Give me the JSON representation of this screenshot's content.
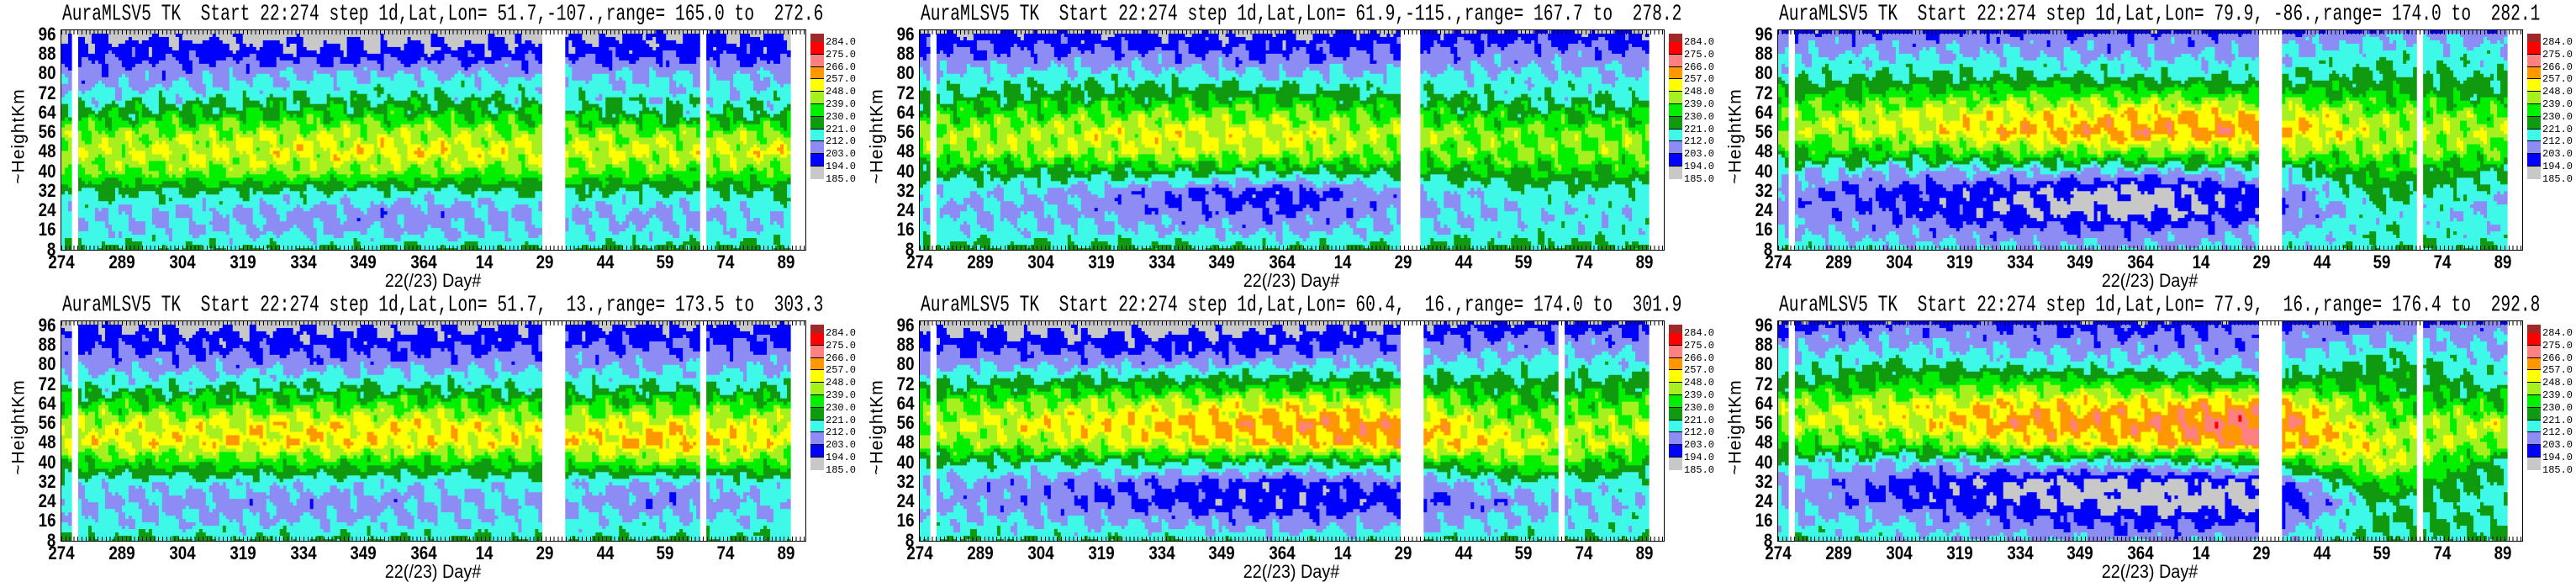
{
  "colorbar": {
    "levels": [
      "284.0",
      "275.0",
      "266.0",
      "257.0",
      "248.0",
      "239.0",
      "230.0",
      "221.0",
      "212.0",
      "203.0",
      "194.0",
      "185.0"
    ],
    "bounds": [
      185,
      194,
      203,
      212,
      221,
      230,
      239,
      248,
      257,
      266,
      275,
      284
    ],
    "colors": [
      "#c8c8c8",
      "#0000ff",
      "#8c8cf4",
      "#3ef8e8",
      "#109a10",
      "#00f000",
      "#a6f020",
      "#ffff00",
      "#ff9800",
      "#ff8080",
      "#ff0000",
      "#a02828"
    ]
  },
  "chart_data": [
    {
      "type": "heatmap",
      "title": "AuraMLSV5 TK  Start 22:274 step 1d,Lat,Lon= 51.7,-107.,range= 165.0 to  272.6",
      "xlabel": "22(/23) Day#",
      "ylabel": "~HeightKm",
      "xticks": [
        "274",
        "289",
        "304",
        "319",
        "334",
        "349",
        "364",
        "14",
        "29",
        "44",
        "59",
        "74",
        "89"
      ],
      "yticks": [
        "8",
        "16",
        "24",
        "32",
        "40",
        "48",
        "56",
        "64",
        "72",
        "80",
        "88",
        "96"
      ],
      "xlim": [
        273.7,
        459
      ],
      "ylim": [
        7.5,
        98
      ],
      "x_days": [
        274,
        304,
        334,
        364,
        394,
        424,
        454
      ],
      "y_heights": [
        96,
        88,
        80,
        72,
        64,
        56,
        48,
        40,
        32,
        24,
        16,
        8
      ],
      "gaps": [
        [
          276,
          277.5
        ],
        [
          393,
          398.5
        ],
        [
          432,
          434
        ],
        [
          455,
          459
        ]
      ],
      "values": [
        [
          192,
          192,
          190,
          190,
          192,
          195,
          195
        ],
        [
          200,
          200,
          198,
          198,
          200,
          200,
          200
        ],
        [
          206,
          208,
          212,
          212,
          210,
          212,
          210
        ],
        [
          214,
          215,
          218,
          220,
          218,
          215,
          215
        ],
        [
          225,
          228,
          230,
          230,
          228,
          222,
          222
        ],
        [
          240,
          242,
          245,
          245,
          242,
          240,
          242
        ],
        [
          246,
          248,
          250,
          252,
          248,
          248,
          250
        ],
        [
          238,
          240,
          242,
          240,
          238,
          238,
          238
        ],
        [
          222,
          222,
          220,
          218,
          222,
          220,
          222
        ],
        [
          214,
          212,
          210,
          206,
          212,
          210,
          214
        ],
        [
          214,
          212,
          210,
          210,
          212,
          212,
          214
        ],
        [
          224,
          222,
          222,
          222,
          222,
          224,
          224
        ]
      ]
    },
    {
      "type": "heatmap",
      "title": "AuraMLSV5 TK  Start 22:274 step 1d,Lat,Lon= 61.9,-115.,range= 167.7 to  278.2",
      "xlabel": "22(/23) Day#",
      "ylabel": "~HeightKm",
      "xticks": [
        "274",
        "289",
        "304",
        "319",
        "334",
        "349",
        "364",
        "14",
        "29",
        "44",
        "59",
        "74",
        "89"
      ],
      "yticks": [
        "8",
        "16",
        "24",
        "32",
        "40",
        "48",
        "56",
        "64",
        "72",
        "80",
        "88",
        "96"
      ],
      "xlim": [
        273.7,
        459
      ],
      "ylim": [
        7.5,
        98
      ],
      "x_days": [
        274,
        304,
        334,
        364,
        394,
        424,
        454
      ],
      "y_heights": [
        96,
        88,
        80,
        72,
        64,
        56,
        48,
        40,
        32,
        24,
        16,
        8
      ],
      "gaps": [
        [
          276,
          277.5
        ],
        [
          393,
          398
        ],
        [
          455,
          459
        ]
      ],
      "values": [
        [
          195,
          198,
          195,
          195,
          198,
          200,
          198
        ],
        [
          205,
          205,
          205,
          202,
          205,
          208,
          205
        ],
        [
          212,
          215,
          215,
          212,
          212,
          214,
          212
        ],
        [
          220,
          224,
          226,
          226,
          222,
          218,
          218
        ],
        [
          232,
          236,
          240,
          240,
          234,
          228,
          228
        ],
        [
          242,
          246,
          250,
          250,
          244,
          240,
          242
        ],
        [
          240,
          244,
          246,
          246,
          240,
          240,
          242
        ],
        [
          225,
          225,
          225,
          222,
          225,
          230,
          230
        ],
        [
          214,
          212,
          204,
          198,
          210,
          218,
          218
        ],
        [
          212,
          210,
          206,
          202,
          210,
          214,
          214
        ],
        [
          214,
          214,
          212,
          210,
          214,
          216,
          216
        ],
        [
          224,
          224,
          224,
          222,
          224,
          224,
          224
        ]
      ]
    },
    {
      "type": "heatmap",
      "title": "AuraMLSV5 TK  Start 22:274 step 1d,Lat,Lon= 79.9, -86.,range= 174.0 to  282.1",
      "xlabel": "22(/23) Day#",
      "ylabel": "~HeightKm",
      "xticks": [
        "274",
        "289",
        "304",
        "319",
        "334",
        "349",
        "364",
        "14",
        "29",
        "44",
        "59",
        "74",
        "89"
      ],
      "yticks": [
        "8",
        "16",
        "24",
        "32",
        "40",
        "48",
        "56",
        "64",
        "72",
        "80",
        "88",
        "96"
      ],
      "xlim": [
        273.7,
        459
      ],
      "ylim": [
        7.5,
        98
      ],
      "x_days": [
        274,
        304,
        334,
        364,
        394,
        424,
        454
      ],
      "y_heights": [
        96,
        88,
        80,
        72,
        64,
        56,
        48,
        40,
        32,
        24,
        16,
        8
      ],
      "gaps": [
        [
          276,
          277.5
        ],
        [
          393,
          398.5
        ],
        [
          432,
          434
        ],
        [
          455,
          459
        ]
      ],
      "values": [
        [
          205,
          205,
          205,
          205,
          205,
          210,
          210
        ],
        [
          212,
          212,
          212,
          210,
          212,
          218,
          215
        ],
        [
          218,
          220,
          220,
          218,
          218,
          222,
          220
        ],
        [
          228,
          232,
          236,
          236,
          232,
          230,
          225
        ],
        [
          240,
          248,
          252,
          255,
          255,
          240,
          238
        ],
        [
          242,
          248,
          258,
          262,
          262,
          245,
          245
        ],
        [
          232,
          232,
          238,
          240,
          240,
          240,
          238
        ],
        [
          215,
          210,
          212,
          210,
          215,
          232,
          222
        ],
        [
          208,
          200,
          195,
          190,
          200,
          225,
          215
        ],
        [
          208,
          202,
          193,
          189,
          200,
          218,
          212
        ],
        [
          212,
          208,
          205,
          205,
          210,
          218,
          215
        ],
        [
          218,
          215,
          212,
          212,
          215,
          220,
          220
        ]
      ]
    },
    {
      "type": "heatmap",
      "title": "AuraMLSV5 TK  Start 22:274 step 1d,Lat,Lon= 51.7,  13.,range= 173.5 to  303.3",
      "xlabel": "22(/23) Day#",
      "ylabel": "~HeightKm",
      "xticks": [
        "274",
        "289",
        "304",
        "319",
        "334",
        "349",
        "364",
        "14",
        "29",
        "44",
        "59",
        "74",
        "89"
      ],
      "yticks": [
        "8",
        "16",
        "24",
        "32",
        "40",
        "48",
        "56",
        "64",
        "72",
        "80",
        "88",
        "96"
      ],
      "xlim": [
        273.7,
        459
      ],
      "ylim": [
        7.5,
        98
      ],
      "x_days": [
        274,
        304,
        334,
        364,
        394,
        424,
        454
      ],
      "y_heights": [
        96,
        88,
        80,
        72,
        64,
        56,
        48,
        40,
        32,
        24,
        16,
        8
      ],
      "gaps": [
        [
          276,
          277.5
        ],
        [
          393,
          398.5
        ],
        [
          432,
          434
        ],
        [
          455,
          459
        ]
      ],
      "values": [
        [
          195,
          192,
          192,
          192,
          195,
          195,
          195
        ],
        [
          203,
          200,
          200,
          200,
          203,
          203,
          203
        ],
        [
          210,
          208,
          208,
          208,
          210,
          210,
          210
        ],
        [
          218,
          218,
          220,
          220,
          218,
          220,
          218
        ],
        [
          232,
          234,
          236,
          236,
          232,
          236,
          234
        ],
        [
          246,
          250,
          252,
          252,
          248,
          252,
          248
        ],
        [
          248,
          252,
          254,
          252,
          250,
          258,
          250
        ],
        [
          232,
          234,
          234,
          232,
          232,
          240,
          235
        ],
        [
          216,
          215,
          215,
          214,
          216,
          210,
          218
        ],
        [
          212,
          208,
          208,
          210,
          212,
          205,
          214
        ],
        [
          214,
          212,
          212,
          212,
          214,
          214,
          214
        ],
        [
          222,
          222,
          222,
          222,
          222,
          222,
          222
        ]
      ]
    },
    {
      "type": "heatmap",
      "title": "AuraMLSV5 TK  Start 22:274 step 1d,Lat,Lon= 60.4,  16.,range= 174.0 to  301.9",
      "xlabel": "22(/23) Day#",
      "ylabel": "~HeightKm",
      "xticks": [
        "274",
        "289",
        "304",
        "319",
        "334",
        "349",
        "364",
        "14",
        "29",
        "44",
        "59",
        "74",
        "89"
      ],
      "yticks": [
        "8",
        "16",
        "24",
        "32",
        "40",
        "48",
        "56",
        "64",
        "72",
        "80",
        "88",
        "96"
      ],
      "xlim": [
        273.7,
        459
      ],
      "ylim": [
        7.5,
        98
      ],
      "x_days": [
        274,
        304,
        334,
        364,
        394,
        424,
        454
      ],
      "y_heights": [
        96,
        88,
        80,
        72,
        64,
        56,
        48,
        40,
        32,
        24,
        16,
        8
      ],
      "gaps": [
        [
          276,
          277.5
        ],
        [
          393,
          398.5
        ],
        [
          432,
          434
        ],
        [
          455,
          459
        ]
      ],
      "values": [
        [
          192,
          190,
          190,
          192,
          195,
          200,
          200
        ],
        [
          200,
          200,
          198,
          200,
          205,
          208,
          208
        ],
        [
          210,
          210,
          210,
          212,
          214,
          216,
          215
        ],
        [
          222,
          226,
          228,
          230,
          228,
          225,
          225
        ],
        [
          236,
          242,
          248,
          250,
          248,
          232,
          238
        ],
        [
          244,
          252,
          256,
          262,
          262,
          240,
          246
        ],
        [
          238,
          245,
          250,
          255,
          260,
          250,
          242
        ],
        [
          222,
          220,
          222,
          222,
          225,
          240,
          228
        ],
        [
          212,
          206,
          203,
          198,
          205,
          218,
          216
        ],
        [
          212,
          206,
          200,
          195,
          200,
          208,
          214
        ],
        [
          214,
          212,
          210,
          206,
          210,
          214,
          216
        ],
        [
          222,
          220,
          220,
          218,
          218,
          220,
          222
        ]
      ]
    },
    {
      "type": "heatmap",
      "title": "AuraMLSV5 TK  Start 22:274 step 1d,Lat,Lon= 77.9,  16.,range= 176.4 to  292.8",
      "xlabel": "22(/23) Day#",
      "ylabel": "~HeightKm",
      "xticks": [
        "274",
        "289",
        "304",
        "319",
        "334",
        "349",
        "364",
        "14",
        "29",
        "44",
        "59",
        "74",
        "89"
      ],
      "yticks": [
        "8",
        "16",
        "24",
        "32",
        "40",
        "48",
        "56",
        "64",
        "72",
        "80",
        "88",
        "96"
      ],
      "xlim": [
        273.7,
        459
      ],
      "ylim": [
        7.5,
        98
      ],
      "x_days": [
        274,
        304,
        334,
        364,
        394,
        424,
        454
      ],
      "y_heights": [
        96,
        88,
        80,
        72,
        64,
        56,
        48,
        40,
        32,
        24,
        16,
        8
      ],
      "gaps": [
        [
          276,
          277.5
        ],
        [
          393,
          398.5
        ],
        [
          432,
          434
        ],
        [
          455,
          459
        ]
      ],
      "values": [
        [
          200,
          205,
          205,
          200,
          205,
          205,
          210
        ],
        [
          210,
          212,
          208,
          208,
          205,
          215,
          210
        ],
        [
          215,
          222,
          218,
          215,
          212,
          225,
          215
        ],
        [
          225,
          232,
          238,
          235,
          230,
          230,
          218
        ],
        [
          240,
          248,
          255,
          255,
          262,
          235,
          232
        ],
        [
          245,
          250,
          262,
          262,
          272,
          240,
          248
        ],
        [
          235,
          235,
          250,
          255,
          265,
          248,
          240
        ],
        [
          218,
          212,
          215,
          215,
          225,
          250,
          222
        ],
        [
          212,
          200,
          192,
          191,
          195,
          235,
          218
        ],
        [
          210,
          202,
          194,
          189,
          190,
          222,
          218
        ],
        [
          215,
          212,
          205,
          200,
          203,
          222,
          220
        ],
        [
          220,
          215,
          212,
          210,
          212,
          222,
          222
        ]
      ]
    }
  ]
}
